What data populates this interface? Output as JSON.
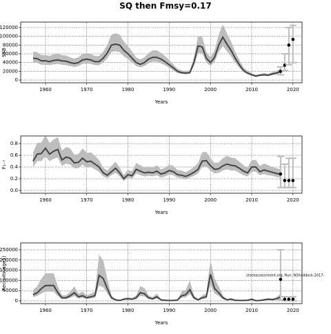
{
  "chart_data": [
    {
      "type": "line",
      "title": "SQ then Fmsy=0.17",
      "ylabel": "SSB",
      "xlabel": "Years",
      "xlim": [
        1954,
        2022.2
      ],
      "xticks": [
        1960,
        1970,
        1980,
        1990,
        2000,
        2010,
        2020
      ],
      "ylim": [
        -6300,
        132600
      ],
      "yticks": [
        0,
        20000,
        40000,
        60000,
        80000,
        100000,
        120000
      ],
      "grid": true,
      "x": [
        1957,
        1958,
        1959,
        1960,
        1961,
        1962,
        1963,
        1964,
        1965,
        1966,
        1967,
        1968,
        1969,
        1970,
        1971,
        1972,
        1973,
        1974,
        1975,
        1976,
        1977,
        1978,
        1979,
        1980,
        1981,
        1982,
        1983,
        1984,
        1985,
        1986,
        1987,
        1988,
        1989,
        1990,
        1991,
        1992,
        1993,
        1994,
        1995,
        1996,
        1997,
        1998,
        1999,
        2000,
        2001,
        2002,
        2003,
        2004,
        2005,
        2006,
        2007,
        2008,
        2009,
        2010,
        2011,
        2012,
        2013,
        2014,
        2015,
        2016,
        2017
      ],
      "series": [
        {
          "color": "#444444",
          "band_color": "#bdbdbd",
          "values": [
            50000,
            49000,
            44000,
            44000,
            42000,
            45000,
            46000,
            44000,
            43000,
            40000,
            38000,
            40000,
            46000,
            48000,
            46000,
            42000,
            42000,
            50000,
            62000,
            80000,
            82000,
            80000,
            68000,
            60000,
            50000,
            40000,
            36000,
            40000,
            48000,
            52000,
            52000,
            48000,
            42000,
            35000,
            28000,
            20000,
            17000,
            16000,
            17000,
            40000,
            78000,
            76000,
            50000,
            40000,
            52000,
            80000,
            98000,
            82000,
            68000,
            50000,
            35000,
            22000,
            16000,
            12000,
            9000,
            11000,
            12000,
            11000,
            14000,
            16000,
            20000
          ],
          "lower": [
            40000,
            39000,
            35000,
            35000,
            34000,
            36000,
            37000,
            35000,
            34000,
            32000,
            30000,
            32000,
            37000,
            38000,
            37000,
            34000,
            34000,
            40000,
            50000,
            64000,
            66000,
            64000,
            54000,
            48000,
            40000,
            32000,
            29000,
            32000,
            38000,
            42000,
            42000,
            38000,
            34000,
            28000,
            22000,
            16000,
            14000,
            13000,
            14000,
            32000,
            62000,
            61000,
            40000,
            32000,
            42000,
            64000,
            78000,
            66000,
            54000,
            40000,
            28000,
            18000,
            13000,
            10000,
            7000,
            9000,
            10000,
            9000,
            11000,
            13000,
            16000
          ],
          "upper": [
            65000,
            64000,
            57000,
            57000,
            55000,
            59000,
            60000,
            57000,
            56000,
            52000,
            49000,
            52000,
            60000,
            62000,
            60000,
            55000,
            55000,
            65000,
            81000,
            104000,
            107000,
            104000,
            88000,
            78000,
            65000,
            52000,
            47000,
            52000,
            62000,
            68000,
            68000,
            62000,
            55000,
            46000,
            36000,
            26000,
            22000,
            21000,
            22000,
            52000,
            101000,
            99000,
            65000,
            52000,
            68000,
            104000,
            127000,
            107000,
            88000,
            65000,
            46000,
            29000,
            21000,
            16000,
            12000,
            14000,
            16000,
            14000,
            18000,
            21000,
            26000
          ]
        }
      ],
      "projection": {
        "color": "#000000",
        "bar_color": "#bdbdbd",
        "x": [
          2017,
          2018,
          2019,
          2020
        ],
        "values": [
          20000,
          34000,
          80000,
          93000
        ],
        "lower": [
          12000,
          22000,
          35000,
          40000
        ],
        "upper": [
          30000,
          60000,
          120000,
          125000
        ]
      }
    },
    {
      "type": "line",
      "ylabel": "F₁₋₇",
      "xlabel": "Years",
      "xlim": [
        1954,
        2022.2
      ],
      "xticks": [
        1960,
        1970,
        1980,
        1990,
        2000,
        2010,
        2020
      ],
      "ylim": [
        -0.047,
        0.93
      ],
      "yticks": [
        {
          "value": 0,
          "label": "0.0"
        },
        0.2,
        0.4,
        0.6,
        0.8
      ],
      "grid": true,
      "x": [
        1957,
        1958,
        1959,
        1960,
        1961,
        1962,
        1963,
        1964,
        1965,
        1966,
        1967,
        1968,
        1969,
        1970,
        1971,
        1972,
        1973,
        1974,
        1975,
        1976,
        1977,
        1978,
        1979,
        1980,
        1981,
        1982,
        1983,
        1984,
        1985,
        1986,
        1987,
        1988,
        1989,
        1990,
        1991,
        1992,
        1993,
        1994,
        1995,
        1996,
        1997,
        1998,
        1999,
        2000,
        2001,
        2002,
        2003,
        2004,
        2005,
        2006,
        2007,
        2008,
        2009,
        2010,
        2011,
        2012,
        2013,
        2014,
        2015,
        2016,
        2017
      ],
      "series": [
        {
          "color": "#444444",
          "band_color": "#bdbdbd",
          "values": [
            0.5,
            0.62,
            0.63,
            0.72,
            0.62,
            0.67,
            0.7,
            0.52,
            0.57,
            0.55,
            0.47,
            0.48,
            0.55,
            0.49,
            0.5,
            0.45,
            0.4,
            0.3,
            0.26,
            0.32,
            0.38,
            0.3,
            0.2,
            0.27,
            0.25,
            0.36,
            0.33,
            0.3,
            0.31,
            0.3,
            0.33,
            0.28,
            0.3,
            0.34,
            0.32,
            0.27,
            0.26,
            0.24,
            0.27,
            0.31,
            0.36,
            0.5,
            0.51,
            0.42,
            0.36,
            0.37,
            0.42,
            0.45,
            0.43,
            0.42,
            0.38,
            0.33,
            0.3,
            0.4,
            0.4,
            0.32,
            0.35,
            0.33,
            0.31,
            0.29,
            0.28
          ],
          "lower": [
            0.4,
            0.5,
            0.5,
            0.58,
            0.5,
            0.54,
            0.56,
            0.42,
            0.46,
            0.44,
            0.38,
            0.38,
            0.44,
            0.39,
            0.4,
            0.36,
            0.32,
            0.24,
            0.21,
            0.26,
            0.3,
            0.24,
            0.16,
            0.22,
            0.2,
            0.29,
            0.26,
            0.24,
            0.25,
            0.24,
            0.26,
            0.22,
            0.24,
            0.27,
            0.26,
            0.22,
            0.21,
            0.19,
            0.22,
            0.25,
            0.29,
            0.4,
            0.41,
            0.34,
            0.29,
            0.3,
            0.34,
            0.36,
            0.34,
            0.34,
            0.3,
            0.26,
            0.24,
            0.32,
            0.32,
            0.26,
            0.28,
            0.26,
            0.25,
            0.23,
            0.22
          ],
          "upper": [
            0.65,
            0.81,
            0.82,
            0.94,
            0.81,
            0.87,
            0.91,
            0.68,
            0.74,
            0.72,
            0.61,
            0.62,
            0.72,
            0.64,
            0.65,
            0.59,
            0.52,
            0.39,
            0.34,
            0.42,
            0.49,
            0.39,
            0.26,
            0.35,
            0.33,
            0.47,
            0.43,
            0.39,
            0.4,
            0.39,
            0.43,
            0.36,
            0.39,
            0.44,
            0.42,
            0.35,
            0.34,
            0.31,
            0.35,
            0.4,
            0.47,
            0.65,
            0.66,
            0.55,
            0.47,
            0.48,
            0.55,
            0.59,
            0.56,
            0.55,
            0.49,
            0.43,
            0.39,
            0.52,
            0.52,
            0.42,
            0.46,
            0.43,
            0.4,
            0.38,
            0.36
          ]
        }
      ],
      "projection": {
        "color": "#000000",
        "bar_color": "#bdbdbd",
        "x": [
          2017,
          2018,
          2019,
          2020
        ],
        "values": [
          0.28,
          0.17,
          0.17,
          0.17
        ],
        "lower": [
          0.05,
          0.05,
          0.05,
          0.05
        ],
        "upper": [
          0.58,
          0.45,
          0.55,
          0.55
        ]
      }
    },
    {
      "type": "line",
      "ylabel": "Recruits(age1)",
      "xlabel": "Years",
      "annotation": "stockassessment.org, Run: NShaddock-2017-",
      "xlim": [
        1954,
        2022.2
      ],
      "xticks": [
        1960,
        1970,
        1980,
        1990,
        2000,
        2010,
        2020
      ],
      "ylim": [
        -13500,
        283800
      ],
      "yticks": [
        0,
        50000,
        100000,
        150000,
        200000,
        250000
      ],
      "grid": true,
      "x": [
        1957,
        1958,
        1959,
        1960,
        1961,
        1962,
        1963,
        1964,
        1965,
        1966,
        1967,
        1968,
        1969,
        1970,
        1971,
        1972,
        1973,
        1974,
        1975,
        1976,
        1977,
        1978,
        1979,
        1980,
        1981,
        1982,
        1983,
        1984,
        1985,
        1986,
        1987,
        1988,
        1989,
        1990,
        1991,
        1992,
        1993,
        1994,
        1995,
        1996,
        1997,
        1998,
        1999,
        2000,
        2001,
        2002,
        2003,
        2004,
        2005,
        2006,
        2007,
        2008,
        2009,
        2010,
        2011,
        2012,
        2013,
        2014,
        2015,
        2016,
        2017
      ],
      "series": [
        {
          "color": "#444444",
          "band_color": "#bdbdbd",
          "values": [
            30000,
            40000,
            60000,
            75000,
            75000,
            75000,
            40000,
            15000,
            15000,
            25000,
            40000,
            20000,
            25000,
            15000,
            20000,
            25000,
            125000,
            110000,
            60000,
            15000,
            5000,
            2000,
            8000,
            10000,
            8000,
            15000,
            40000,
            35000,
            15000,
            10000,
            20000,
            5000,
            3000,
            2000,
            2000,
            4000,
            25000,
            30000,
            55000,
            15000,
            5000,
            15000,
            20000,
            130000,
            60000,
            40000,
            15000,
            5000,
            8000,
            3000,
            2000,
            2000,
            3000,
            8000,
            1000,
            2000,
            5000,
            8000,
            6000,
            10000,
            20000
          ],
          "lower": [
            18000,
            24000,
            36000,
            45000,
            45000,
            45000,
            24000,
            9000,
            9000,
            15000,
            24000,
            12000,
            15000,
            9000,
            12000,
            15000,
            75000,
            66000,
            36000,
            9000,
            3000,
            1000,
            5000,
            6000,
            5000,
            9000,
            24000,
            21000,
            9000,
            6000,
            12000,
            3000,
            2000,
            1000,
            1000,
            2000,
            15000,
            18000,
            33000,
            9000,
            3000,
            9000,
            12000,
            78000,
            36000,
            24000,
            9000,
            3000,
            5000,
            2000,
            1000,
            1000,
            2000,
            5000,
            1000,
            1000,
            3000,
            5000,
            4000,
            6000,
            8000
          ],
          "upper": [
            54000,
            72000,
            108000,
            135000,
            135000,
            135000,
            72000,
            27000,
            27000,
            45000,
            72000,
            36000,
            45000,
            27000,
            36000,
            45000,
            225000,
            198000,
            108000,
            27000,
            9000,
            4000,
            14000,
            18000,
            14000,
            27000,
            72000,
            63000,
            27000,
            18000,
            36000,
            9000,
            5000,
            4000,
            4000,
            7000,
            45000,
            54000,
            99000,
            27000,
            9000,
            27000,
            36000,
            200000,
            108000,
            72000,
            27000,
            9000,
            14000,
            5000,
            4000,
            4000,
            5000,
            14000,
            2000,
            4000,
            9000,
            14000,
            11000,
            18000,
            36000
          ]
        }
      ],
      "projection": {
        "color": "#000000",
        "bar_color": "#bdbdbd",
        "x": [
          2017,
          2018,
          2019,
          2020
        ],
        "values": [
          105000,
          8000,
          8000,
          8000
        ],
        "lower": [
          5000,
          1000,
          1000,
          1000
        ],
        "upper": [
          250000,
          20000,
          20000,
          20000
        ]
      }
    }
  ]
}
